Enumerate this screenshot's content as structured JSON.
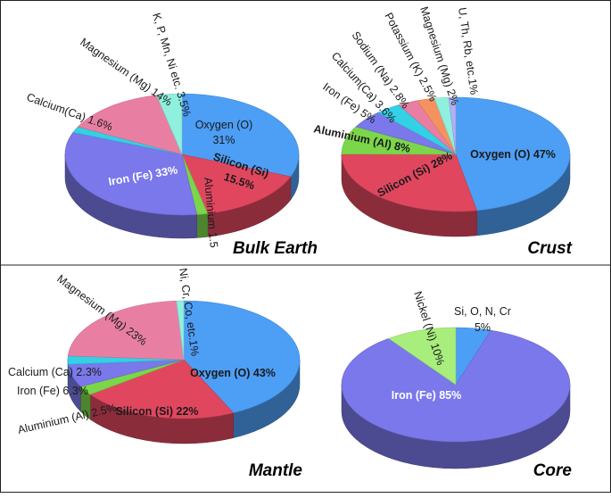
{
  "chart_data": [
    {
      "type": "pie",
      "title": "Bulk Earth",
      "slices": [
        {
          "name": "Oxygen (O)",
          "value": 31,
          "label": "Oxygen (O)",
          "label2": "31%",
          "color": "#4d9ef5"
        },
        {
          "name": "Silicon (Si)",
          "value": 15.5,
          "label": "Silicon (Si)",
          "label2": "15.5%",
          "color": "#e0475f"
        },
        {
          "name": "Aluminium",
          "value": 1.5,
          "label": "Aluminium 1.5",
          "label2": "",
          "color": "#7bd64a"
        },
        {
          "name": "Iron (Fe)",
          "value": 33,
          "label": "Iron (Fe) 33%",
          "label2": "",
          "color": "#7a78ea"
        },
        {
          "name": "Calcium(Ca)",
          "value": 1.6,
          "label": "Calcium(Ca) 1.6%",
          "label2": "",
          "color": "#33d0e6"
        },
        {
          "name": "Magnesium (Mg)",
          "value": 14,
          "label": "Magnesium (Mg) 14%",
          "label2": "",
          "color": "#e87fa3"
        },
        {
          "name": "K, P, Mn, Ni etc.",
          "value": 3.5,
          "label": "K, P, Mn, Ni etc. 3.5%",
          "label2": "",
          "color": "#8ff0de"
        }
      ]
    },
    {
      "type": "pie",
      "title": "Crust",
      "slices": [
        {
          "name": "Oxygen (O)",
          "value": 47,
          "label": "Oxygen (O) 47%",
          "label2": "",
          "color": "#4d9ef5"
        },
        {
          "name": "Silicon (Si)",
          "value": 28,
          "label": "Silicon (Si) 28%",
          "label2": "",
          "color": "#e0475f"
        },
        {
          "name": "Aluminium (Al)",
          "value": 8,
          "label": "Aluminium (Al) 8%",
          "label2": "",
          "color": "#7bd64a"
        },
        {
          "name": "Iron (Fe)",
          "value": 5,
          "label": "Iron (Fe) 5%",
          "label2": "",
          "color": "#7a78ea"
        },
        {
          "name": "Calcium(Ca)",
          "value": 3.6,
          "label": "Calcium(Ca) 3.6%",
          "label2": "",
          "color": "#33d0e6"
        },
        {
          "name": "Sodium (Na)",
          "value": 2.8,
          "label": "Sodium (Na) 2.8%",
          "label2": "",
          "color": "#e87fa3"
        },
        {
          "name": "Potassium (K)",
          "value": 2.5,
          "label": "Potassium (K) 2.5%",
          "label2": "",
          "color": "#f59260"
        },
        {
          "name": "Magnesium (Mg)",
          "value": 2,
          "label": "Magnesium (Mg) 2%",
          "label2": "",
          "color": "#8ff0de"
        },
        {
          "name": "U, Th, Rb, etc.",
          "value": 1,
          "label": "U, Th, Rb, etc.1%",
          "label2": "",
          "color": "#b0b0f5"
        }
      ]
    },
    {
      "type": "pie",
      "title": "Mantle",
      "slices": [
        {
          "name": "Oxygen (O)",
          "value": 43,
          "label": "Oxygen (O) 43%",
          "label2": "",
          "color": "#4d9ef5"
        },
        {
          "name": "Silicon (Si)",
          "value": 22,
          "label": "Silicon (Si) 22%",
          "label2": "",
          "color": "#e0475f"
        },
        {
          "name": "Aluminium (Al)",
          "value": 2.5,
          "label": "Aluminium (Al) 2.5%",
          "label2": "",
          "color": "#7bd64a"
        },
        {
          "name": "Iron (Fe)",
          "value": 6.3,
          "label": "Iron (Fe) 6.3%",
          "label2": "",
          "color": "#7a78ea"
        },
        {
          "name": "Calcium (Ca)",
          "value": 2.3,
          "label": "Calcium (Ca)  2.3%",
          "label2": "",
          "color": "#33d0e6"
        },
        {
          "name": "Magnesium (Mg)",
          "value": 23,
          "label": "Magnesium (Mg) 23%",
          "label2": "",
          "color": "#e87fa3"
        },
        {
          "name": "Ni, Cr, Co, etc.",
          "value": 1,
          "label": "Ni, Cr, Co, etc.1%",
          "label2": "",
          "color": "#8ff0de"
        }
      ]
    },
    {
      "type": "pie",
      "title": "Core",
      "slices": [
        {
          "name": "Si, O, N, Cr",
          "value": 5,
          "label": "Si, O, N, Cr",
          "label2": "5%",
          "color": "#4d9ef5"
        },
        {
          "name": "Iron (Fe)",
          "value": 85,
          "label": "Iron (Fe) 85%",
          "label2": "",
          "color": "#7a78ea"
        },
        {
          "name": "Nickel (Ni)",
          "value": 10,
          "label": "Nickel (Ni) 10%",
          "label2": "",
          "color": "#a8ee7c"
        }
      ]
    }
  ]
}
